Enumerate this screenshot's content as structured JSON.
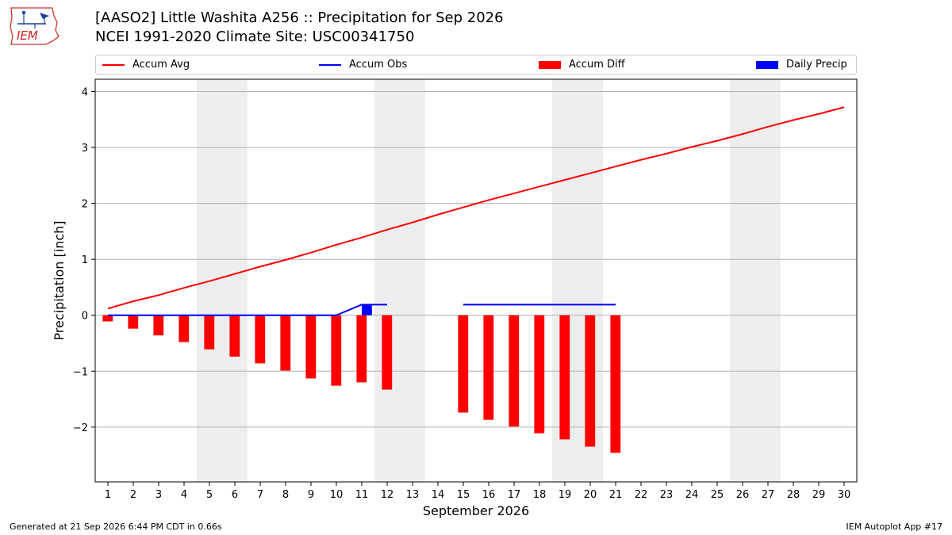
{
  "header": {
    "title_line1": "[AASO2] Little Washita A256 :: Precipitation for Sep 2026",
    "title_line2": "NCEI 1991-2020 Climate Site: USC00341750",
    "logo_text": "IEM"
  },
  "footer": {
    "generated": "Generated at 21 Sep 2026 6:44 PM CDT in 0.66s",
    "app": "IEM Autoplot App #17"
  },
  "legend": {
    "accum_avg": "Accum Avg",
    "accum_obs": "Accum Obs",
    "accum_diff": "Accum Diff",
    "daily_precip": "Daily Precip"
  },
  "colors": {
    "accum_avg": "#ff0000",
    "accum_obs": "#0000ff",
    "accum_diff": "#ff0000",
    "daily_precip": "#0000ff",
    "weekend_shade": "#eeeeee",
    "grid": "#b0b0b0"
  },
  "chart_data": {
    "type": "bar",
    "xlabel": "September 2026",
    "ylabel": "Precipitation [inch]",
    "xlim": [
      0.5,
      30.5
    ],
    "ylim": [
      -2.98,
      4.22
    ],
    "yticks": [
      -2,
      -1,
      0,
      1,
      2,
      3,
      4
    ],
    "ytick_labels": [
      "−2",
      "−1",
      "0",
      "1",
      "2",
      "3",
      "4"
    ],
    "x": [
      1,
      2,
      3,
      4,
      5,
      6,
      7,
      8,
      9,
      10,
      11,
      12,
      13,
      14,
      15,
      16,
      17,
      18,
      19,
      20,
      21,
      22,
      23,
      24,
      25,
      26,
      27,
      28,
      29,
      30
    ],
    "weekend_spans": [
      [
        5,
        6
      ],
      [
        12,
        13
      ],
      [
        19,
        20
      ],
      [
        26,
        27
      ]
    ],
    "grid": true,
    "legend_position": "top",
    "series": [
      {
        "name": "Accum Avg",
        "kind": "line",
        "values": [
          0.12,
          0.25,
          0.36,
          0.49,
          0.61,
          0.74,
          0.87,
          0.99,
          1.12,
          1.26,
          1.39,
          1.53,
          1.66,
          1.8,
          1.93,
          2.06,
          2.18,
          2.3,
          2.42,
          2.54,
          2.66,
          2.78,
          2.89,
          3.01,
          3.12,
          3.24,
          3.37,
          3.49,
          3.6,
          3.72
        ]
      },
      {
        "name": "Accum Obs",
        "kind": "line",
        "values": [
          0.0,
          0.0,
          0.0,
          0.0,
          0.0,
          0.0,
          0.0,
          0.0,
          0.0,
          0.0,
          0.19,
          0.19,
          null,
          null,
          0.19,
          0.19,
          0.19,
          0.19,
          0.19,
          0.19,
          0.19,
          null,
          null,
          null,
          null,
          null,
          null,
          null,
          null,
          null
        ]
      },
      {
        "name": "Accum Diff",
        "kind": "bar",
        "values": [
          -0.11,
          -0.24,
          -0.36,
          -0.48,
          -0.61,
          -0.74,
          -0.86,
          -0.99,
          -1.13,
          -1.26,
          -1.2,
          -1.33,
          null,
          null,
          -1.74,
          -1.87,
          -1.99,
          -2.11,
          -2.22,
          -2.35,
          -2.46,
          null,
          null,
          null,
          null,
          null,
          null,
          null,
          null,
          null
        ]
      },
      {
        "name": "Daily Precip",
        "kind": "bar",
        "values": [
          0,
          0,
          0,
          0,
          0,
          0,
          0,
          0,
          0,
          0,
          0.19,
          0,
          null,
          null,
          0,
          0,
          0,
          0,
          0,
          0,
          0,
          null,
          null,
          null,
          null,
          null,
          null,
          null,
          null,
          null
        ]
      }
    ]
  }
}
